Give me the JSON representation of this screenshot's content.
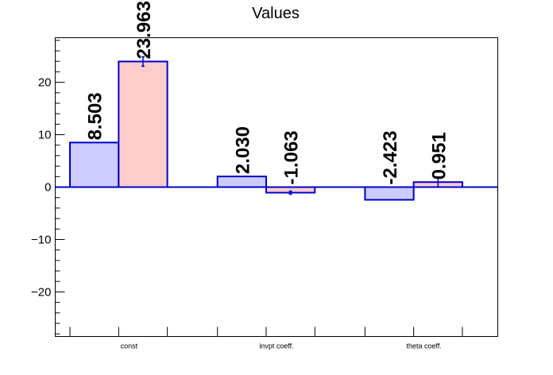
{
  "chart_data": {
    "type": "bar",
    "title": "Values",
    "xlabel": "",
    "ylabel": "",
    "categories": [
      "const",
      "invpt coeff.",
      "theta coeff."
    ],
    "ylim": [
      -28.5,
      28.5
    ],
    "yticks": [
      -20,
      -10,
      0,
      10,
      20
    ],
    "tick_labels": [
      "−20",
      "−10",
      "0",
      "10",
      "20"
    ],
    "series": [
      {
        "values": [
          8.503,
          2.03,
          -2.423
        ],
        "labels": [
          "8.503",
          "2.030",
          "-2.423"
        ],
        "errors": [
          0,
          0,
          0
        ],
        "fill": "#ccccff",
        "stroke": "#0000cc"
      },
      {
        "values": [
          23.963,
          -1.063,
          0.951
        ],
        "labels": [
          "23.963",
          "-1.063",
          "0.951"
        ],
        "errors": [
          0.9,
          0.3,
          0.9
        ],
        "fill": "#ffcccc",
        "stroke": "#0000cc"
      }
    ],
    "grid": false,
    "legend": "none"
  }
}
